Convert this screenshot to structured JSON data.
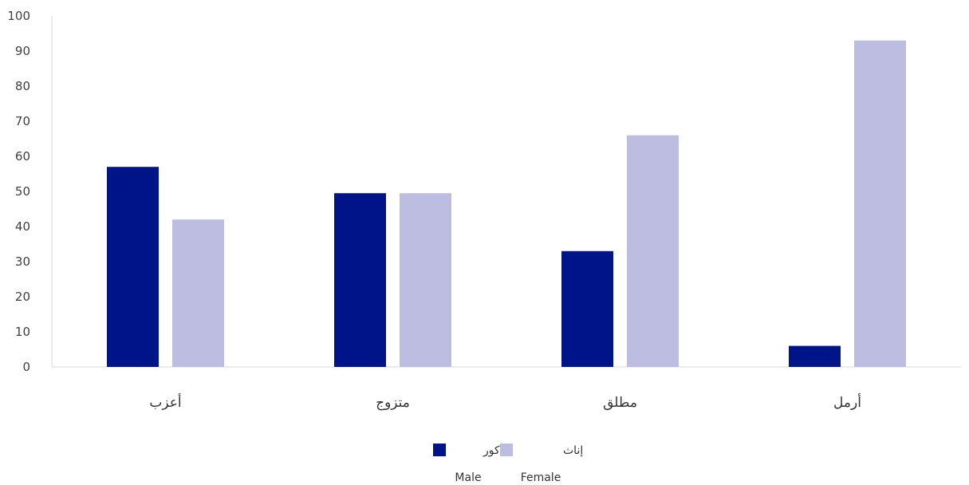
{
  "chart_data": {
    "type": "bar",
    "categories": [
      "أعزب",
      "متزوج",
      "مطلق",
      "أرمل"
    ],
    "series": [
      {
        "name": "ذكور",
        "name_en": "Male",
        "color": "#001489",
        "values": [
          57,
          49.5,
          33,
          6
        ]
      },
      {
        "name": "إناث",
        "name_en": "Female",
        "color": "#bcbde0",
        "values": [
          42,
          49.5,
          66,
          93
        ]
      }
    ],
    "ylim": [
      0,
      100
    ],
    "yticks": [
      0,
      10,
      20,
      30,
      40,
      50,
      60,
      70,
      80,
      90,
      100
    ],
    "grid": false,
    "legend_position": "bottom-center",
    "title": "",
    "xlabel": "",
    "ylabel": ""
  }
}
